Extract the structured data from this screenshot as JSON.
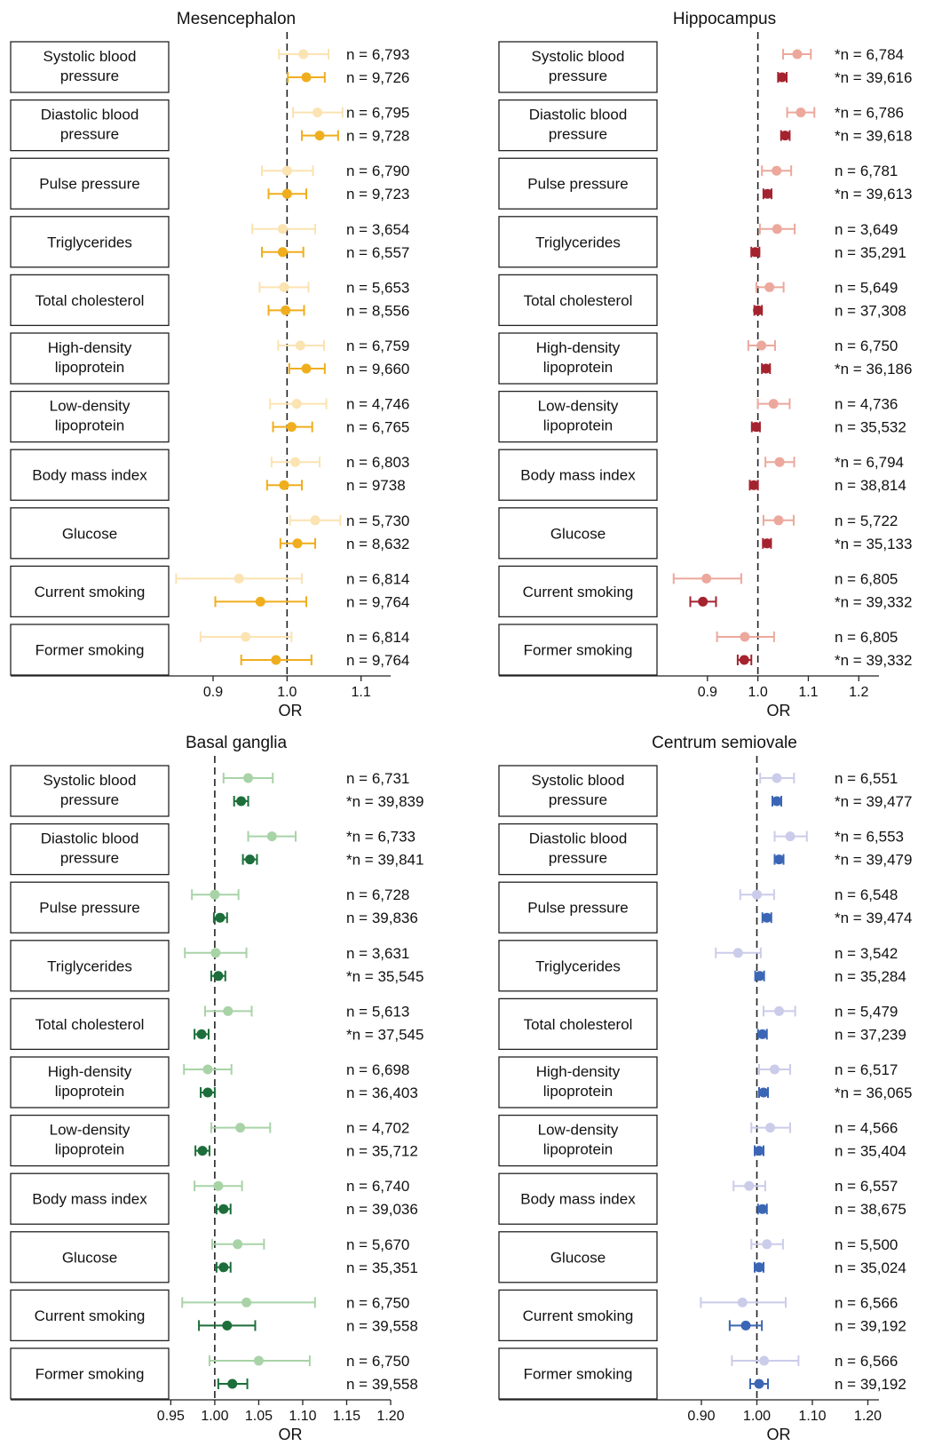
{
  "x_axis_label": "OR",
  "chart_data": [
    {
      "type": "forest",
      "title": "Mesencephalon",
      "xlabel": "OR",
      "xlim": [
        0.84,
        1.14
      ],
      "xticks": [
        0.9,
        1.0,
        1.1
      ],
      "xtick_labels": [
        "0.9",
        "1.0",
        "1.1"
      ],
      "reference_line": 1.0,
      "colors": {
        "light": "#FBE3B2",
        "dark": "#F0AE1E"
      },
      "rows": [
        {
          "label": "Systolic blood pressure",
          "light": {
            "n": "n = 6,793",
            "or": 1.022,
            "lo": 0.989,
            "hi": 1.056
          },
          "dark": {
            "n": "n = 9,726",
            "or": 1.026,
            "lo": 1.001,
            "hi": 1.051
          }
        },
        {
          "label": "Diastolic blood pressure",
          "light": {
            "n": "n = 6,795",
            "or": 1.041,
            "lo": 1.008,
            "hi": 1.075
          },
          "dark": {
            "n": "n = 9,728",
            "or": 1.044,
            "lo": 1.02,
            "hi": 1.069
          }
        },
        {
          "label": "Pulse pressure",
          "light": {
            "n": "n = 6,790",
            "or": 1.0,
            "lo": 0.966,
            "hi": 1.035
          },
          "dark": {
            "n": "n = 9,723",
            "or": 1.0,
            "lo": 0.975,
            "hi": 1.026
          }
        },
        {
          "label": "Triglycerides",
          "light": {
            "n": "n = 3,654",
            "or": 0.994,
            "lo": 0.953,
            "hi": 1.038
          },
          "dark": {
            "n": "n = 6,557",
            "or": 0.994,
            "lo": 0.966,
            "hi": 1.022
          }
        },
        {
          "label": "Total cholesterol",
          "light": {
            "n": "n = 5,653",
            "or": 0.996,
            "lo": 0.963,
            "hi": 1.029
          },
          "dark": {
            "n": "n = 8,556",
            "or": 0.998,
            "lo": 0.975,
            "hi": 1.023
          }
        },
        {
          "label": "High-density lipoprotein",
          "light": {
            "n": "n = 6,759",
            "or": 1.018,
            "lo": 0.988,
            "hi": 1.05
          },
          "dark": {
            "n": "n = 9,660",
            "or": 1.026,
            "lo": 1.003,
            "hi": 1.051
          }
        },
        {
          "label": "Low-density lipoprotein",
          "light": {
            "n": "n = 4,746",
            "or": 1.013,
            "lo": 0.977,
            "hi": 1.053
          },
          "dark": {
            "n": "n = 6,765",
            "or": 1.006,
            "lo": 0.981,
            "hi": 1.034
          }
        },
        {
          "label": "Body mass index",
          "light": {
            "n": "n = 6,803",
            "or": 1.011,
            "lo": 0.979,
            "hi": 1.044
          },
          "dark": {
            "n": "n = 9738",
            "or": 0.996,
            "lo": 0.973,
            "hi": 1.02
          }
        },
        {
          "label": "Glucose",
          "light": {
            "n": "n = 5,730",
            "or": 1.038,
            "lo": 1.004,
            "hi": 1.072
          },
          "dark": {
            "n": "n = 8,632",
            "or": 1.014,
            "lo": 0.991,
            "hi": 1.038
          }
        },
        {
          "label": "Current smoking",
          "light": {
            "n": "n = 6,814",
            "or": 0.935,
            "lo": 0.85,
            "hi": 1.02
          },
          "dark": {
            "n": "n = 9,764",
            "or": 0.964,
            "lo": 0.903,
            "hi": 1.026
          }
        },
        {
          "label": "Former smoking",
          "light": {
            "n": "n = 6,814",
            "or": 0.944,
            "lo": 0.883,
            "hi": 1.006
          },
          "dark": {
            "n": "n = 9,764",
            "or": 0.985,
            "lo": 0.938,
            "hi": 1.033
          }
        }
      ]
    },
    {
      "type": "forest",
      "title": "Hippocampus",
      "xlabel": "OR",
      "xlim": [
        0.8,
        1.24
      ],
      "xticks": [
        0.9,
        1.0,
        1.1,
        1.2
      ],
      "xtick_labels": [
        "0.9",
        "1.0",
        "1.1",
        "1.2"
      ],
      "reference_line": 1.0,
      "colors": {
        "light": "#ECA89C",
        "dark": "#A4232E"
      },
      "rows": [
        {
          "label": "Systolic blood pressure",
          "light": {
            "n": "*n = 6,784",
            "or": 1.078,
            "lo": 1.05,
            "hi": 1.105
          },
          "dark": {
            "n": "*n = 39,616",
            "or": 1.048,
            "lo": 1.04,
            "hi": 1.057
          }
        },
        {
          "label": "Diastolic blood pressure",
          "light": {
            "n": "*n = 6,786",
            "or": 1.085,
            "lo": 1.058,
            "hi": 1.112
          },
          "dark": {
            "n": "*n = 39,618",
            "or": 1.054,
            "lo": 1.046,
            "hi": 1.063
          }
        },
        {
          "label": "Pulse pressure",
          "light": {
            "n": "n = 6,781",
            "or": 1.037,
            "lo": 1.008,
            "hi": 1.066
          },
          "dark": {
            "n": "*n = 39,613",
            "or": 1.019,
            "lo": 1.011,
            "hi": 1.027
          }
        },
        {
          "label": "Triglycerides",
          "light": {
            "n": "n = 3,649",
            "or": 1.038,
            "lo": 1.004,
            "hi": 1.073
          },
          "dark": {
            "n": "n = 35,291",
            "or": 0.995,
            "lo": 0.987,
            "hi": 1.003
          }
        },
        {
          "label": "Total cholesterol",
          "light": {
            "n": "n = 5,649",
            "or": 1.023,
            "lo": 0.997,
            "hi": 1.051
          },
          "dark": {
            "n": "n = 37,308",
            "or": 1.0,
            "lo": 0.993,
            "hi": 1.008
          }
        },
        {
          "label": "High-density lipoprotein",
          "light": {
            "n": "n = 6,750",
            "or": 1.007,
            "lo": 0.981,
            "hi": 1.034
          },
          "dark": {
            "n": "*n = 36,186",
            "or": 1.016,
            "lo": 1.008,
            "hi": 1.024
          }
        },
        {
          "label": "Low-density lipoprotein",
          "light": {
            "n": "n = 4,736",
            "or": 1.031,
            "lo": 1.0,
            "hi": 1.063
          },
          "dark": {
            "n": "n = 35,532",
            "or": 0.996,
            "lo": 0.988,
            "hi": 1.004
          }
        },
        {
          "label": "Body mass index",
          "light": {
            "n": "*n = 6,794",
            "or": 1.043,
            "lo": 1.015,
            "hi": 1.072
          },
          "dark": {
            "n": "n = 38,814",
            "or": 0.992,
            "lo": 0.984,
            "hi": 1.0
          }
        },
        {
          "label": "Glucose",
          "light": {
            "n": "n = 5,722",
            "or": 1.041,
            "lo": 1.011,
            "hi": 1.071
          },
          "dark": {
            "n": "*n = 35,133",
            "or": 1.018,
            "lo": 1.01,
            "hi": 1.026
          }
        },
        {
          "label": "Current smoking",
          "light": {
            "n": "n = 6,805",
            "or": 0.898,
            "lo": 0.833,
            "hi": 0.967
          },
          "dark": {
            "n": "*n = 39,332",
            "or": 0.891,
            "lo": 0.866,
            "hi": 0.917
          }
        },
        {
          "label": "Former smoking",
          "light": {
            "n": "n = 6,805",
            "or": 0.974,
            "lo": 0.919,
            "hi": 1.032
          },
          "dark": {
            "n": "*n = 39,332",
            "or": 0.973,
            "lo": 0.96,
            "hi": 0.987
          }
        }
      ]
    },
    {
      "type": "forest",
      "title": "Basal ganglia",
      "xlabel": "OR",
      "xlim": [
        0.9476,
        1.2
      ],
      "xticks": [
        0.95,
        1.0,
        1.05,
        1.1,
        1.15,
        1.2
      ],
      "xtick_labels": [
        "0.95",
        "1.00",
        "1.05",
        "1.10",
        "1.15",
        "1.20"
      ],
      "reference_line": 1.0,
      "colors": {
        "light": "#A8D3A7",
        "dark": "#1C6E3A"
      },
      "rows": [
        {
          "label": "Systolic blood pressure",
          "light": {
            "n": "n = 6,731",
            "or": 1.038,
            "lo": 1.01,
            "hi": 1.066
          },
          "dark": {
            "n": "*n = 39,839",
            "or": 1.03,
            "lo": 1.022,
            "hi": 1.038
          }
        },
        {
          "label": "Diastolic blood pressure",
          "light": {
            "n": "*n = 6,733",
            "or": 1.065,
            "lo": 1.038,
            "hi": 1.092
          },
          "dark": {
            "n": "*n = 39,841",
            "or": 1.04,
            "lo": 1.032,
            "hi": 1.048
          }
        },
        {
          "label": "Pulse pressure",
          "light": {
            "n": "n = 6,728",
            "or": 1.0,
            "lo": 0.974,
            "hi": 1.027
          },
          "dark": {
            "n": "n = 39,836",
            "or": 1.006,
            "lo": 0.999,
            "hi": 1.014
          }
        },
        {
          "label": "Triglycerides",
          "light": {
            "n": "n = 3,631",
            "or": 1.001,
            "lo": 0.966,
            "hi": 1.036
          },
          "dark": {
            "n": "*n = 35,545",
            "or": 1.004,
            "lo": 0.996,
            "hi": 1.012
          }
        },
        {
          "label": "Total cholesterol",
          "light": {
            "n": "n = 5,613",
            "or": 1.015,
            "lo": 0.989,
            "hi": 1.042
          },
          "dark": {
            "n": "*n = 37,545",
            "or": 0.985,
            "lo": 0.977,
            "hi": 0.993
          }
        },
        {
          "label": "High-density lipoprotein",
          "light": {
            "n": "n = 6,698",
            "or": 0.992,
            "lo": 0.965,
            "hi": 1.019
          },
          "dark": {
            "n": "n = 36,403",
            "or": 0.992,
            "lo": 0.984,
            "hi": 1.0
          }
        },
        {
          "label": "Low-density lipoprotein",
          "light": {
            "n": "n = 4,702",
            "or": 1.029,
            "lo": 0.996,
            "hi": 1.063
          },
          "dark": {
            "n": "n = 35,712",
            "or": 0.986,
            "lo": 0.978,
            "hi": 0.994
          }
        },
        {
          "label": "Body mass index",
          "light": {
            "n": "n = 6,740",
            "or": 1.004,
            "lo": 0.977,
            "hi": 1.031
          },
          "dark": {
            "n": "n = 39,036",
            "or": 1.01,
            "lo": 1.002,
            "hi": 1.018
          }
        },
        {
          "label": "Glucose",
          "light": {
            "n": "n = 5,670",
            "or": 1.026,
            "lo": 0.997,
            "hi": 1.056
          },
          "dark": {
            "n": "n = 35,351",
            "or": 1.01,
            "lo": 1.002,
            "hi": 1.018
          }
        },
        {
          "label": "Current smoking",
          "light": {
            "n": "n = 6,750",
            "or": 1.036,
            "lo": 0.963,
            "hi": 1.114
          },
          "dark": {
            "n": "n = 39,558",
            "or": 1.014,
            "lo": 0.982,
            "hi": 1.046
          }
        },
        {
          "label": "Former smoking",
          "light": {
            "n": "n = 6,750",
            "or": 1.05,
            "lo": 0.994,
            "hi": 1.108
          },
          "dark": {
            "n": "n = 39,558",
            "or": 1.02,
            "lo": 1.004,
            "hi": 1.037
          }
        }
      ]
    },
    {
      "type": "forest",
      "title": "Centrum semiovale",
      "xlabel": "OR",
      "xlim": [
        0.82,
        1.22
      ],
      "xticks": [
        0.9,
        1.0,
        1.1,
        1.2
      ],
      "xtick_labels": [
        "0.90",
        "1.00",
        "1.10",
        "1.20"
      ],
      "reference_line": 1.0,
      "colors": {
        "light": "#CBCCEA",
        "dark": "#3B66B5"
      },
      "rows": [
        {
          "label": "Systolic blood pressure",
          "light": {
            "n": "n = 6,551",
            "or": 1.036,
            "lo": 1.006,
            "hi": 1.067
          },
          "dark": {
            "n": "*n = 39,477",
            "or": 1.036,
            "lo": 1.028,
            "hi": 1.044
          }
        },
        {
          "label": "Diastolic blood pressure",
          "light": {
            "n": "*n = 6,553",
            "or": 1.06,
            "lo": 1.032,
            "hi": 1.09
          },
          "dark": {
            "n": "*n = 39,479",
            "or": 1.04,
            "lo": 1.032,
            "hi": 1.048
          }
        },
        {
          "label": "Pulse pressure",
          "light": {
            "n": "n = 6,548",
            "or": 1.0,
            "lo": 0.97,
            "hi": 1.031
          },
          "dark": {
            "n": "*n = 39,474",
            "or": 1.018,
            "lo": 1.01,
            "hi": 1.026
          }
        },
        {
          "label": "Triglycerides",
          "light": {
            "n": "n = 3,542",
            "or": 0.966,
            "lo": 0.926,
            "hi": 1.007
          },
          "dark": {
            "n": "n = 35,284",
            "or": 1.005,
            "lo": 0.997,
            "hi": 1.013
          }
        },
        {
          "label": "Total cholesterol",
          "light": {
            "n": "n = 5,479",
            "or": 1.04,
            "lo": 1.012,
            "hi": 1.069
          },
          "dark": {
            "n": "n = 37,239",
            "or": 1.01,
            "lo": 1.002,
            "hi": 1.018
          }
        },
        {
          "label": "High-density lipoprotein",
          "light": {
            "n": "n = 6,517",
            "or": 1.032,
            "lo": 1.004,
            "hi": 1.06
          },
          "dark": {
            "n": "*n = 36,065",
            "or": 1.012,
            "lo": 1.004,
            "hi": 1.02
          }
        },
        {
          "label": "Low-density lipoprotein",
          "light": {
            "n": "n = 4,566",
            "or": 1.024,
            "lo": 0.99,
            "hi": 1.06
          },
          "dark": {
            "n": "n = 35,404",
            "or": 1.004,
            "lo": 0.996,
            "hi": 1.012
          }
        },
        {
          "label": "Body mass index",
          "light": {
            "n": "n = 6,557",
            "or": 0.986,
            "lo": 0.958,
            "hi": 1.015
          },
          "dark": {
            "n": "n = 38,675",
            "or": 1.01,
            "lo": 1.002,
            "hi": 1.018
          }
        },
        {
          "label": "Glucose",
          "light": {
            "n": "n = 5,500",
            "or": 1.018,
            "lo": 0.99,
            "hi": 1.047
          },
          "dark": {
            "n": "n = 35,024",
            "or": 1.004,
            "lo": 0.996,
            "hi": 1.012
          }
        },
        {
          "label": "Current smoking",
          "light": {
            "n": "n = 6,566",
            "or": 0.974,
            "lo": 0.899,
            "hi": 1.052
          },
          "dark": {
            "n": "n = 39,192",
            "or": 0.98,
            "lo": 0.951,
            "hi": 1.009
          }
        },
        {
          "label": "Former smoking",
          "light": {
            "n": "n = 6,566",
            "or": 1.013,
            "lo": 0.955,
            "hi": 1.075
          },
          "dark": {
            "n": "n = 39,192",
            "or": 1.004,
            "lo": 0.988,
            "hi": 1.02
          }
        }
      ]
    }
  ]
}
